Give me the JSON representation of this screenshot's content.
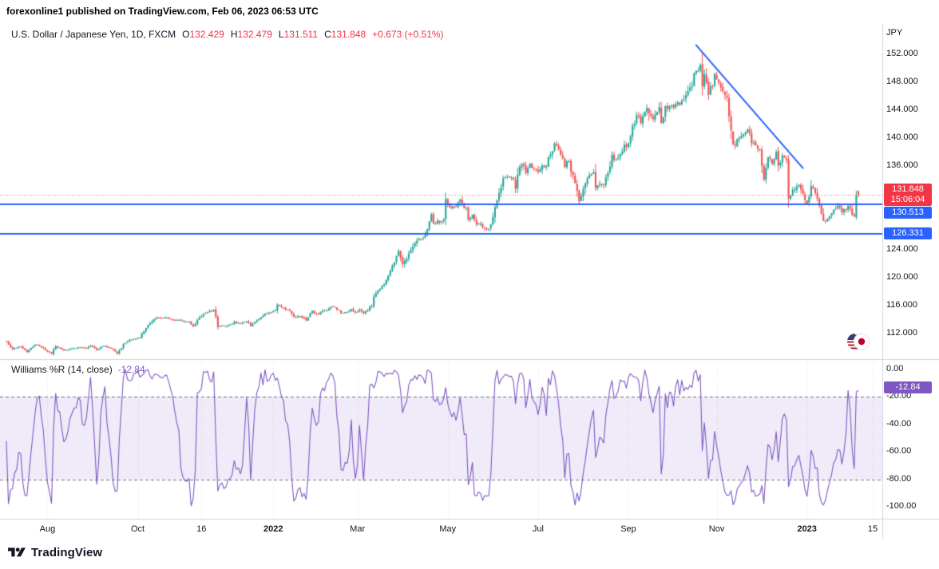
{
  "header": {
    "attribution": "forexonline1 published on TradingView.com, Feb 06, 2023 06:53 UTC"
  },
  "legend": {
    "symbol": "U.S. Dollar / Japanese Yen, 1D, FXCM",
    "ohlc": [
      {
        "label": "O",
        "value": "132.429"
      },
      {
        "label": "H",
        "value": "132.479"
      },
      {
        "label": "L",
        "value": "131.511"
      },
      {
        "label": "C",
        "value": "131.848"
      }
    ],
    "change": "+0.673 (+0.51%)"
  },
  "indicator": {
    "title": "Williams %R (14, close)",
    "value": "-12.84"
  },
  "price_axis": {
    "unit": "JPY",
    "ticks": [
      "152.000",
      "148.000",
      "144.000",
      "140.000",
      "136.000",
      "124.000",
      "120.000",
      "116.000",
      "112.000"
    ],
    "badges": [
      {
        "price": 131.848,
        "lines": [
          "131.848",
          "15:06:04"
        ],
        "color": "#F23645"
      },
      {
        "price": 130.513,
        "lines": [
          "130.513"
        ],
        "color": "#2962FF"
      },
      {
        "price": 126.331,
        "lines": [
          "126.331"
        ],
        "color": "#2962FF"
      }
    ]
  },
  "wr_axis": {
    "ticks": [
      "0.00",
      "-20.00",
      "-40.00",
      "-60.00",
      "-80.00",
      "-100.00"
    ],
    "badge": {
      "value": -12.84,
      "text": "-12.84",
      "color": "#7E57C2"
    }
  },
  "time_axis": {
    "labels": [
      {
        "text": "Aug",
        "day": 20
      },
      {
        "text": "Oct",
        "day": 64
      },
      {
        "text": "16",
        "day": 95
      },
      {
        "text": "2022",
        "day": 130
      },
      {
        "text": "Mar",
        "day": 171
      },
      {
        "text": "May",
        "day": 215
      },
      {
        "text": "Jul",
        "day": 259
      },
      {
        "text": "Sep",
        "day": 303
      },
      {
        "text": "Nov",
        "day": 346
      },
      {
        "text": "2023",
        "day": 390
      },
      {
        "text": "15",
        "day": 422
      }
    ]
  },
  "footer": {
    "brand": "TradingView"
  },
  "colors": {
    "up": "#26A69A",
    "down": "#EF5350",
    "blue": "#2962FF",
    "red": "#F23645",
    "purple": "#7E57C2",
    "grid": "#D1D4DC",
    "band_fill": "rgba(126,87,194,0.12)",
    "band_edge": "#6b6f7b",
    "price_line": "rgba(201,74,80,0.8)"
  },
  "chart_data": [
    {
      "type": "candlestick",
      "title": "U.S. Dollar / Japanese Yen, 1D, FXCM",
      "ylabel": "JPY",
      "x_range": [
        "2021-07-05",
        "2023-02-06"
      ],
      "ylim": [
        108.3,
        156.3
      ],
      "grid": false,
      "legend_position": "top-left",
      "num_days": 416,
      "last_bar": {
        "o": 132.429,
        "h": 132.479,
        "l": 131.511,
        "c": 131.848
      },
      "overlays": {
        "support_lines": [
          130.513,
          126.331
        ],
        "price_line": 131.848,
        "trendline": {
          "from": [
            336,
            153.3
          ],
          "to": [
            388,
            135.7
          ]
        }
      },
      "waypoints": [
        [
          0,
          110.9
        ],
        [
          3,
          109.8
        ],
        [
          7,
          110.2
        ],
        [
          10,
          109.4
        ],
        [
          14,
          110.5
        ],
        [
          19,
          109.7
        ],
        [
          22,
          109.1
        ],
        [
          24,
          110.2
        ],
        [
          28,
          109.6
        ],
        [
          32,
          109.8
        ],
        [
          35,
          110.1
        ],
        [
          39,
          109.9
        ],
        [
          41,
          110.3
        ],
        [
          44,
          109.7
        ],
        [
          47,
          110.3
        ],
        [
          51,
          109.9
        ],
        [
          54,
          109.2
        ],
        [
          57,
          110.4
        ],
        [
          60,
          111.0
        ],
        [
          63,
          111.3
        ],
        [
          65,
          111.4
        ],
        [
          68,
          112.9
        ],
        [
          70,
          113.4
        ],
        [
          72,
          114.2
        ],
        [
          75,
          114.3
        ],
        [
          79,
          114.2
        ],
        [
          82,
          114.0
        ],
        [
          85,
          113.9
        ],
        [
          89,
          113.7
        ],
        [
          91,
          112.9
        ],
        [
          93,
          114.0
        ],
        [
          96,
          114.8
        ],
        [
          101,
          115.4
        ],
        [
          103,
          113.2
        ],
        [
          106,
          113.1
        ],
        [
          108,
          113.2
        ],
        [
          111,
          113.6
        ],
        [
          114,
          113.4
        ],
        [
          117,
          113.7
        ],
        [
          119,
          113.1
        ],
        [
          123,
          114.1
        ],
        [
          126,
          114.9
        ],
        [
          129,
          115.1
        ],
        [
          131,
          115.3
        ],
        [
          132,
          116.1
        ],
        [
          135,
          115.6
        ],
        [
          138,
          115.3
        ],
        [
          140,
          114.2
        ],
        [
          143,
          114.6
        ],
        [
          146,
          113.9
        ],
        [
          149,
          115.3
        ],
        [
          151,
          114.7
        ],
        [
          154,
          115.2
        ],
        [
          157,
          115.5
        ],
        [
          159,
          116.0
        ],
        [
          161,
          115.4
        ],
        [
          164,
          114.9
        ],
        [
          168,
          115.5
        ],
        [
          170,
          115.0
        ],
        [
          172,
          115.5
        ],
        [
          174,
          114.8
        ],
        [
          176,
          115.3
        ],
        [
          178,
          116.1
        ],
        [
          179,
          117.3
        ],
        [
          181,
          118.4
        ],
        [
          183,
          118.7
        ],
        [
          185,
          119.5
        ],
        [
          187,
          120.8
        ],
        [
          189,
          122.3
        ],
        [
          191,
          123.9
        ],
        [
          193,
          121.8
        ],
        [
          194,
          122.5
        ],
        [
          197,
          123.8
        ],
        [
          200,
          125.4
        ],
        [
          203,
          125.6
        ],
        [
          205,
          126.9
        ],
        [
          207,
          128.9
        ],
        [
          208,
          127.7
        ],
        [
          211,
          128.1
        ],
        [
          213,
          128.4
        ],
        [
          214,
          130.8
        ],
        [
          216,
          130.1
        ],
        [
          219,
          130.2
        ],
        [
          221,
          131.2
        ],
        [
          222,
          130.4
        ],
        [
          224,
          129.9
        ],
        [
          225,
          128.3
        ],
        [
          227,
          129.2
        ],
        [
          229,
          127.8
        ],
        [
          231,
          127.9
        ],
        [
          233,
          126.8
        ],
        [
          235,
          127.1
        ],
        [
          237,
          128.8
        ],
        [
          238,
          130.0
        ],
        [
          240,
          131.9
        ],
        [
          242,
          134.2
        ],
        [
          244,
          134.4
        ],
        [
          246,
          134.5
        ],
        [
          248,
          132.9
        ],
        [
          249,
          134.9
        ],
        [
          251,
          136.5
        ],
        [
          253,
          135.0
        ],
        [
          255,
          136.1
        ],
        [
          257,
          135.7
        ],
        [
          259,
          135.2
        ],
        [
          261,
          135.9
        ],
        [
          263,
          136.0
        ],
        [
          264,
          137.4
        ],
        [
          267,
          139.0
        ],
        [
          269,
          138.2
        ],
        [
          271,
          137.4
        ],
        [
          272,
          136.1
        ],
        [
          274,
          136.9
        ],
        [
          276,
          134.3
        ],
        [
          277,
          133.2
        ],
        [
          279,
          130.9
        ],
        [
          280,
          131.6
        ],
        [
          282,
          133.9
        ],
        [
          284,
          135.0
        ],
        [
          286,
          135.1
        ],
        [
          287,
          132.9
        ],
        [
          289,
          133.4
        ],
        [
          291,
          133.3
        ],
        [
          293,
          135.1
        ],
        [
          295,
          137.2
        ],
        [
          297,
          136.8
        ],
        [
          299,
          137.5
        ],
        [
          301,
          138.7
        ],
        [
          302,
          138.9
        ],
        [
          304,
          140.2
        ],
        [
          307,
          143.7
        ],
        [
          309,
          142.5
        ],
        [
          312,
          144.6
        ],
        [
          313,
          143.1
        ],
        [
          315,
          143.0
        ],
        [
          318,
          144.1
        ],
        [
          319,
          142.3
        ],
        [
          321,
          144.2
        ],
        [
          324,
          144.7
        ],
        [
          326,
          144.6
        ],
        [
          329,
          145.3
        ],
        [
          331,
          145.8
        ],
        [
          333,
          147.0
        ],
        [
          335,
          148.8
        ],
        [
          337,
          149.9
        ],
        [
          338,
          150.9
        ],
        [
          339,
          147.6
        ],
        [
          340,
          148.9
        ],
        [
          342,
          146.4
        ],
        [
          345,
          148.7
        ],
        [
          347,
          147.9
        ],
        [
          349,
          146.6
        ],
        [
          351,
          145.6
        ],
        [
          353,
          140.9
        ],
        [
          354,
          138.8
        ],
        [
          356,
          139.5
        ],
        [
          358,
          140.2
        ],
        [
          361,
          141.2
        ],
        [
          363,
          139.6
        ],
        [
          365,
          139.1
        ],
        [
          367,
          138.0
        ],
        [
          368,
          135.6
        ],
        [
          369,
          134.3
        ],
        [
          371,
          137.0
        ],
        [
          373,
          136.6
        ],
        [
          375,
          137.7
        ],
        [
          376,
          135.6
        ],
        [
          378,
          137.8
        ],
        [
          380,
          136.9
        ],
        [
          381,
          131.7
        ],
        [
          383,
          132.4
        ],
        [
          386,
          133.5
        ],
        [
          389,
          131.1
        ],
        [
          390,
          130.7
        ],
        [
          392,
          133.4
        ],
        [
          394,
          131.9
        ],
        [
          397,
          129.2
        ],
        [
          398,
          127.9
        ],
        [
          400,
          128.6
        ],
        [
          401,
          128.9
        ],
        [
          403,
          129.6
        ],
        [
          405,
          130.2
        ],
        [
          407,
          129.6
        ],
        [
          409,
          129.9
        ],
        [
          410,
          130.4
        ],
        [
          411,
          130.1
        ],
        [
          412,
          128.9
        ],
        [
          413,
          128.7
        ],
        [
          414,
          131.2
        ],
        [
          415,
          131.85
        ]
      ]
    },
    {
      "type": "line",
      "title": "Williams %R (14, close)",
      "period": 14,
      "source": "close",
      "last_value": -12.84,
      "ylim": [
        -100,
        0
      ],
      "band": [
        -20,
        -80
      ],
      "derived_from": "candles",
      "legend_position": "top-left"
    }
  ]
}
